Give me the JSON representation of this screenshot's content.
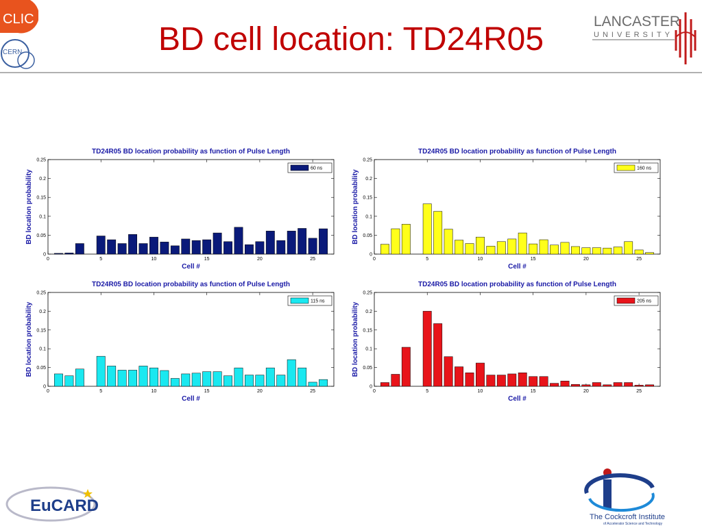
{
  "slide": {
    "title": "BD cell location: TD24R05"
  },
  "logos": {
    "clic": "CLIC",
    "cern": "CERN",
    "lancaster_line1": "LANCASTER",
    "lancaster_line2": "UNIVERSITY",
    "eucard": "EuCARD",
    "cockcroft_line1": "The Cockcroft Institute",
    "cockcroft_line2": "of Accelerator Science and Technology"
  },
  "colors": {
    "title": "#c00000",
    "axis_text": "#1a1aa6"
  },
  "chart_data": [
    {
      "type": "bar",
      "title": "TD24R05 BD location probability as function of Pulse Length",
      "xlabel": "Cell #",
      "ylabel": "BD location probability",
      "xlim": [
        0,
        27
      ],
      "ylim": [
        0,
        0.25
      ],
      "xticks": [
        "0",
        "5",
        "10",
        "15",
        "20",
        "25"
      ],
      "yticks": [
        "0",
        "0.05",
        "0.1",
        "0.15",
        "0.2",
        "0.25"
      ],
      "legend_position": "top-right",
      "series": [
        {
          "name": "60 ns",
          "color": "#0a1a7a",
          "x": [
            1,
            2,
            3,
            4,
            5,
            6,
            7,
            8,
            9,
            10,
            11,
            12,
            13,
            14,
            15,
            16,
            17,
            18,
            19,
            20,
            21,
            22,
            23,
            24,
            25,
            26
          ],
          "values": [
            0.002,
            0.003,
            0.028,
            0,
            0.048,
            0.038,
            0.028,
            0.052,
            0.028,
            0.045,
            0.032,
            0.022,
            0.04,
            0.036,
            0.038,
            0.056,
            0.033,
            0.071,
            0.025,
            0.033,
            0.061,
            0.036,
            0.061,
            0.068,
            0.042,
            0.067
          ]
        }
      ]
    },
    {
      "type": "bar",
      "title": "TD24R05 BD location probability as function of Pulse Length",
      "xlabel": "Cell #",
      "ylabel": "BD location probability",
      "xlim": [
        0,
        27
      ],
      "ylim": [
        0,
        0.25
      ],
      "xticks": [
        "0",
        "5",
        "10",
        "15",
        "20",
        "25"
      ],
      "yticks": [
        "0",
        "0.05",
        "0.1",
        "0.15",
        "0.2",
        "0.25"
      ],
      "legend_position": "top-right",
      "series": [
        {
          "name": "160 ns",
          "color": "#ffff1a",
          "x": [
            1,
            2,
            3,
            4,
            5,
            6,
            7,
            8,
            9,
            10,
            11,
            12,
            13,
            14,
            15,
            16,
            17,
            18,
            19,
            20,
            21,
            22,
            23,
            24,
            25,
            26
          ],
          "values": [
            0.026,
            0.067,
            0.079,
            0,
            0.133,
            0.113,
            0.066,
            0.037,
            0.028,
            0.045,
            0.021,
            0.033,
            0.04,
            0.056,
            0.027,
            0.038,
            0.024,
            0.031,
            0.02,
            0.017,
            0.017,
            0.016,
            0.019,
            0.033,
            0.011,
            0.004
          ]
        }
      ]
    },
    {
      "type": "bar",
      "title": "TD24R05 BD location probability as function of Pulse Length",
      "xlabel": "Cell #",
      "ylabel": "BD location probability",
      "xlim": [
        0,
        27
      ],
      "ylim": [
        0,
        0.25
      ],
      "xticks": [
        "0",
        "5",
        "10",
        "15",
        "20",
        "25"
      ],
      "yticks": [
        "0",
        "0.05",
        "0.1",
        "0.15",
        "0.2",
        "0.25"
      ],
      "legend_position": "top-right",
      "series": [
        {
          "name": "115 ns",
          "color": "#1ae8f0",
          "x": [
            1,
            2,
            3,
            4,
            5,
            6,
            7,
            8,
            9,
            10,
            11,
            12,
            13,
            14,
            15,
            16,
            17,
            18,
            19,
            20,
            21,
            22,
            23,
            24,
            25,
            26
          ],
          "values": [
            0.033,
            0.028,
            0.046,
            0,
            0.08,
            0.054,
            0.043,
            0.043,
            0.054,
            0.049,
            0.042,
            0.021,
            0.033,
            0.035,
            0.039,
            0.039,
            0.028,
            0.049,
            0.03,
            0.03,
            0.049,
            0.03,
            0.071,
            0.049,
            0.011,
            0.018
          ]
        }
      ]
    },
    {
      "type": "bar",
      "title": "TD24R05 BD location probability as function of Pulse Length",
      "xlabel": "Cell #",
      "ylabel": "BD location probability",
      "xlim": [
        0,
        27
      ],
      "ylim": [
        0,
        0.25
      ],
      "xticks": [
        "0",
        "5",
        "10",
        "15",
        "20",
        "25"
      ],
      "yticks": [
        "0",
        "0.05",
        "0.1",
        "0.15",
        "0.2",
        "0.25"
      ],
      "legend_position": "top-right",
      "series": [
        {
          "name": "205 ns",
          "color": "#e8141a",
          "x": [
            1,
            2,
            3,
            4,
            5,
            6,
            7,
            8,
            9,
            10,
            11,
            12,
            13,
            14,
            15,
            16,
            17,
            18,
            19,
            20,
            21,
            22,
            23,
            24,
            25,
            26
          ],
          "values": [
            0.01,
            0.032,
            0.104,
            0,
            0.2,
            0.167,
            0.079,
            0.052,
            0.036,
            0.062,
            0.03,
            0.03,
            0.033,
            0.036,
            0.026,
            0.026,
            0.008,
            0.014,
            0.005,
            0.004,
            0.01,
            0.004,
            0.01,
            0.01,
            0.003,
            0.004
          ]
        }
      ]
    }
  ]
}
